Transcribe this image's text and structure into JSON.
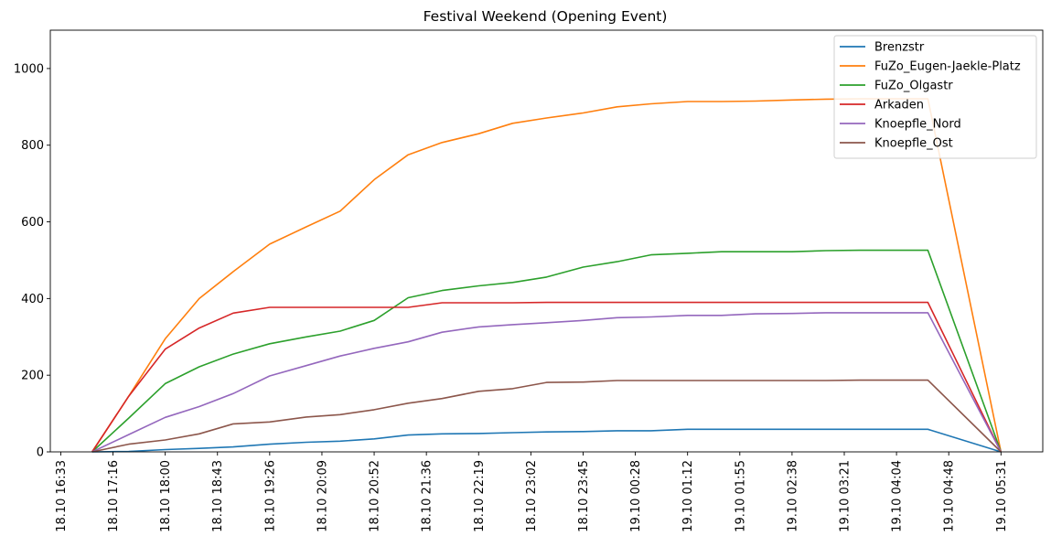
{
  "chart_data": {
    "type": "line",
    "title": "Festival Weekend (Opening Event)",
    "xlabel": "",
    "ylabel": "",
    "ylim": [
      0,
      1100
    ],
    "yticks": [
      0,
      200,
      400,
      600,
      800,
      1000
    ],
    "grid": false,
    "legend_position": "top-right",
    "xticks": [
      {
        "pos": 0,
        "label": "18.10 16:33"
      },
      {
        "pos": 1,
        "label": "18.10 17:16"
      },
      {
        "pos": 2,
        "label": "18.10 18:00"
      },
      {
        "pos": 3,
        "label": "18.10 18:43"
      },
      {
        "pos": 4,
        "label": "18.10 19:26"
      },
      {
        "pos": 5,
        "label": "18.10 20:09"
      },
      {
        "pos": 6,
        "label": "18.10 20:52"
      },
      {
        "pos": 7,
        "label": "18.10 21:36"
      },
      {
        "pos": 8,
        "label": "18.10 22:19"
      },
      {
        "pos": 9,
        "label": "18.10 23:02"
      },
      {
        "pos": 10,
        "label": "18.10 23:45"
      },
      {
        "pos": 11,
        "label": "19.10 00:28"
      },
      {
        "pos": 12,
        "label": "19.10 01:12"
      },
      {
        "pos": 13,
        "label": "19.10 01:55"
      },
      {
        "pos": 14,
        "label": "19.10 02:38"
      },
      {
        "pos": 15,
        "label": "19.10 03:21"
      },
      {
        "pos": 16,
        "label": "19.10 04:04"
      },
      {
        "pos": 17,
        "label": "19.10 04:48"
      },
      {
        "pos": 18,
        "label": "19.10 05:31"
      }
    ],
    "xlim": [
      -0.2,
      18.8
    ],
    "x": [
      0.6,
      1.3,
      2.0,
      2.65,
      3.3,
      4.0,
      4.7,
      5.35,
      6.0,
      6.65,
      7.3,
      8.0,
      8.65,
      9.3,
      10.0,
      10.65,
      11.3,
      12.0,
      12.65,
      13.3,
      14.0,
      14.65,
      15.3,
      16.0,
      16.6,
      18.0
    ],
    "series": [
      {
        "name": "Brenzstr",
        "color": "#1f77b4",
        "values": [
          0,
          1,
          6,
          9,
          13,
          20,
          25,
          28,
          34,
          44,
          47,
          48,
          50,
          52,
          53,
          55,
          55,
          59,
          59,
          59,
          59,
          59,
          59,
          59,
          59,
          0
        ]
      },
      {
        "name": "FuZo_Eugen-Jaekle-Platz",
        "color": "#ff7f0e",
        "values": [
          0,
          145,
          295,
          400,
          470,
          542,
          587,
          628,
          710,
          775,
          807,
          830,
          857,
          871,
          884,
          900,
          908,
          914,
          914,
          915,
          918,
          920,
          921,
          921,
          921,
          0
        ]
      },
      {
        "name": "FuZo_Olgastr",
        "color": "#2ca02c",
        "values": [
          0,
          88,
          178,
          222,
          255,
          282,
          300,
          315,
          343,
          402,
          421,
          433,
          442,
          456,
          482,
          496,
          514,
          518,
          522,
          522,
          522,
          525,
          526,
          526,
          526,
          0
        ]
      },
      {
        "name": "Arkaden",
        "color": "#d62728",
        "values": [
          0,
          145,
          268,
          323,
          362,
          377,
          377,
          377,
          377,
          377,
          389,
          389,
          389,
          390,
          390,
          390,
          390,
          390,
          390,
          390,
          390,
          390,
          390,
          390,
          390,
          0
        ]
      },
      {
        "name": "Knoepfle_Nord",
        "color": "#9467bd",
        "values": [
          0,
          45,
          90,
          118,
          152,
          198,
          225,
          250,
          270,
          287,
          312,
          326,
          332,
          337,
          343,
          350,
          352,
          356,
          356,
          360,
          361,
          363,
          363,
          363,
          363,
          0
        ]
      },
      {
        "name": "Knoepfle_Ost",
        "color": "#8c564b",
        "values": [
          0,
          20,
          31,
          47,
          73,
          78,
          91,
          97,
          110,
          127,
          139,
          158,
          165,
          181,
          182,
          186,
          186,
          186,
          186,
          186,
          186,
          186,
          187,
          187,
          187,
          0
        ]
      }
    ]
  }
}
